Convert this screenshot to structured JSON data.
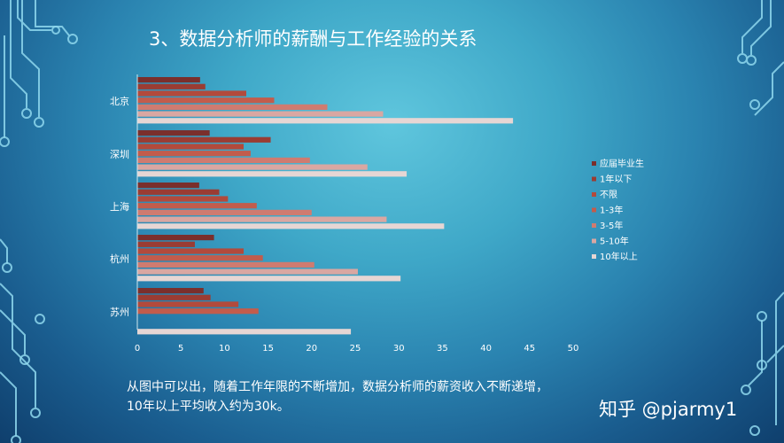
{
  "slide": {
    "title": "3、数据分析师的薪酬与工作经验的关系",
    "caption_line1": "从图中可以出，随着工作年限的不断增加，数据分析师的薪资收入不断递增，",
    "caption_line2": "10年以上平均收入约为30k。",
    "watermark": "知乎 @pjarmy1"
  },
  "chart_data": {
    "type": "bar",
    "orientation": "horizontal",
    "categories": [
      "北京",
      "深圳",
      "上海",
      "杭州",
      "苏州"
    ],
    "xlim": [
      0,
      50
    ],
    "xticks": [
      0,
      5,
      10,
      15,
      20,
      25,
      30,
      35,
      40,
      45,
      50
    ],
    "legend_position": "right",
    "grid": false,
    "series": [
      {
        "name": "应届毕业生",
        "color": "#7a2f2c",
        "values": [
          7.2,
          8.3,
          7.1,
          8.8,
          7.6
        ]
      },
      {
        "name": "1年以下",
        "color": "#9a3c33",
        "values": [
          7.8,
          15.3,
          9.4,
          6.6,
          8.4
        ]
      },
      {
        "name": "不限",
        "color": "#b24a3c",
        "values": [
          12.5,
          12.2,
          10.4,
          12.2,
          11.6
        ]
      },
      {
        "name": "1-3年",
        "color": "#c25c4c",
        "values": [
          15.7,
          13.0,
          13.7,
          14.4,
          13.9
        ]
      },
      {
        "name": "3-5年",
        "color": "#cf7b70",
        "values": [
          21.8,
          19.8,
          20.0,
          20.3,
          null
        ]
      },
      {
        "name": "5-10年",
        "color": "#d9a7a2",
        "values": [
          28.2,
          26.4,
          28.6,
          25.3,
          null
        ]
      },
      {
        "name": "10年以上",
        "color": "#e6d6d4",
        "values": [
          43.1,
          30.9,
          35.2,
          30.2,
          24.5
        ]
      }
    ]
  }
}
